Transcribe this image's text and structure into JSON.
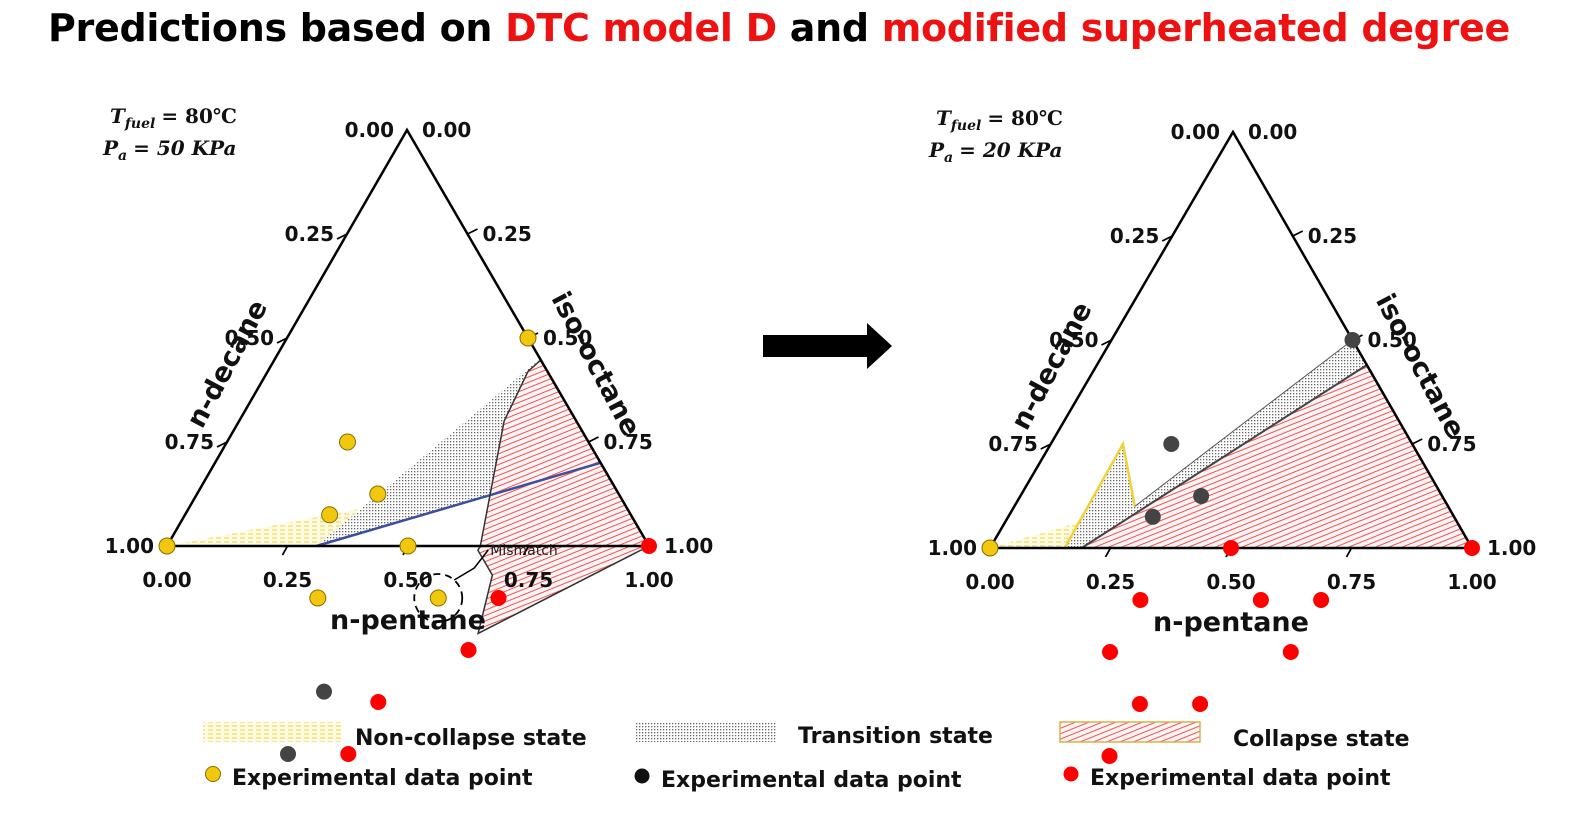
{
  "title": {
    "part1": "Predictions based on ",
    "part2": "DTC model D",
    "part3": " and ",
    "part4": "modified superheated degree",
    "highlight_color": "#ee1111"
  },
  "colors": {
    "non_collapse": "#f0d238",
    "transition": "#444444",
    "collapse": "#e11a1a",
    "boundary_left": "#3d4f9a",
    "yellow_point": "#f2c80f",
    "dark_point": "#444444",
    "red_point": "#ff0000",
    "arrow": "#000000"
  },
  "chart_data": [
    {
      "type": "scatter",
      "subtype": "ternary",
      "conditions": {
        "T_sym": "T",
        "T_sub": "fuel",
        "T_val": "= 80℃",
        "P_sym": "P",
        "P_sub": "a",
        "P_val": "= 50 KPa",
        "P_color": "#111111"
      },
      "axes": {
        "bottom": {
          "label": "n-pentane",
          "ticks": [
            "0.00",
            "0.25",
            "0.50",
            "0.75",
            "1.00"
          ]
        },
        "left": {
          "label": "n-decane",
          "ticks": [
            "1.00",
            "0.75",
            "0.50",
            "0.25",
            "0.00"
          ]
        },
        "right": {
          "label": "iso-octane",
          "ticks": [
            "1.00",
            "0.75",
            "0.50",
            "0.25",
            "0.00"
          ]
        }
      },
      "regions": {
        "non_collapse": [
          [
            0,
            1,
            0
          ],
          [
            0.31,
            0.69,
            0
          ],
          [
            0.8,
            0,
            0.2
          ]
        ],
        "transition": [
          [
            0.31,
            0.69,
            0
          ],
          [
            0.55,
            0,
            0.45
          ],
          [
            0.553,
            0,
            0.447
          ],
          [
            0.54,
            0.04,
            0.42
          ],
          [
            0.55,
            0.15,
            0.3
          ],
          [
            0.65,
            0.35,
            0
          ],
          [
            0.65,
            0.36,
            -0.01
          ],
          [
            0.71,
            0.36,
            -0.07
          ],
          [
            0.75,
            0.46,
            -0.21
          ],
          [
            0.8,
            0,
            0.2
          ]
        ],
        "collapse": [
          [
            0.553,
            0,
            0.447
          ],
          [
            1,
            0,
            0
          ],
          [
            0.75,
            0.46,
            -0.21
          ],
          [
            0.71,
            0.36,
            -0.07
          ],
          [
            0.65,
            0.36,
            -0.01
          ],
          [
            0.65,
            0.35,
            0
          ],
          [
            0.55,
            0.15,
            0.3
          ],
          [
            0.54,
            0.04,
            0.42
          ]
        ]
      },
      "boundary_left": [
        [
          0.31,
          0.69,
          0
        ],
        [
          0.8,
          0,
          0.2
        ]
      ],
      "points": [
        {
          "n_pentane": 0.0,
          "n_decane": 1.0,
          "state": "non_collapse"
        },
        {
          "n_pentane": 0.25,
          "n_decane": 0.5,
          "state": "non_collapse"
        },
        {
          "n_pentane": 0.375,
          "n_decane": 0.5,
          "state": "non_collapse"
        },
        {
          "n_pentane": 0.5,
          "n_decane": 0.5,
          "state": "non_collapse"
        },
        {
          "n_pentane": 0.625,
          "n_decane": 0.5,
          "state": "non_collapse"
        },
        {
          "n_pentane": 0.3,
          "n_decane": 0.625,
          "state": "non_collapse"
        },
        {
          "n_pentane": 0.375,
          "n_decane": 0.75,
          "state": "non_collapse"
        },
        {
          "n_pentane": 0.5,
          "n_decane": 0.0,
          "state": "non_collapse"
        },
        {
          "n_pentane": 0.5,
          "n_decane": 1.0,
          "state": "transition"
        },
        {
          "n_pentane": 0.5,
          "n_decane": 0.85,
          "state": "transition"
        },
        {
          "n_pentane": 0.75,
          "n_decane": 0.5,
          "state": "collapse"
        },
        {
          "n_pentane": 0.75,
          "n_decane": 0.375,
          "state": "collapse"
        },
        {
          "n_pentane": 0.625,
          "n_decane": 0.75,
          "state": "collapse"
        },
        {
          "n_pentane": 0.625,
          "n_decane": 0.875,
          "state": "collapse"
        },
        {
          "n_pentane": 1.0,
          "n_decane": 0.0,
          "state": "collapse"
        }
      ],
      "annotation": {
        "text": "Mismatch",
        "n_pentane": 0.625,
        "n_decane": 0.5
      }
    },
    {
      "type": "scatter",
      "subtype": "ternary",
      "conditions": {
        "T_sym": "T",
        "T_sub": "fuel",
        "T_val": "= 80℃",
        "P_sym": "P",
        "P_sub": "a",
        "P_val": "= 20 KPa",
        "P_color": "#ee1111"
      },
      "axes": {
        "bottom": {
          "label": "n-pentane",
          "ticks": [
            "0.00",
            "0.25",
            "0.50",
            "0.75",
            "1.00"
          ]
        },
        "left": {
          "label": "n-decane",
          "ticks": [
            "1.00",
            "0.75",
            "0.50",
            "0.25",
            "0.00"
          ]
        },
        "right": {
          "label": "iso-octane",
          "ticks": [
            "1.00",
            "0.75",
            "0.50",
            "0.25",
            "0.00"
          ]
        }
      },
      "regions": {
        "non_collapse": [
          [
            0,
            1,
            0
          ],
          [
            0.155,
            0.845,
            0
          ],
          [
            0.15,
            0.6,
            0.25
          ],
          [
            0.25,
            0.65,
            0.1
          ]
        ],
        "transition": [
          [
            0.155,
            0.845,
            0
          ],
          [
            0.19,
            0.81,
            0
          ],
          [
            0.56,
            0,
            0.44
          ],
          [
            0.5,
            0,
            0.5
          ],
          [
            0.25,
            0.65,
            0.1
          ],
          [
            0.15,
            0.6,
            0.25
          ]
        ],
        "collapse": [
          [
            0.19,
            0.81,
            0
          ],
          [
            1,
            0,
            0
          ],
          [
            0.56,
            0,
            0.44
          ]
        ]
      },
      "boundary_nc": [
        [
          0.155,
          0.845,
          0
        ],
        [
          0.15,
          0.6,
          0.25
        ],
        [
          0.25,
          0.65,
          0.1
        ]
      ],
      "boundary_right": [
        [
          0.19,
          0.81,
          0
        ],
        [
          0.56,
          0,
          0.44
        ]
      ],
      "points": [
        {
          "n_pentane": 0.0,
          "n_decane": 1.0,
          "state": "non_collapse"
        },
        {
          "n_pentane": 0.5,
          "n_decane": 0.0,
          "state": "transition"
        },
        {
          "n_pentane": 0.25,
          "n_decane": 0.5,
          "state": "transition"
        },
        {
          "n_pentane": 0.375,
          "n_decane": 0.5,
          "state": "transition"
        },
        {
          "n_pentane": 0.3,
          "n_decane": 0.625,
          "state": "transition"
        },
        {
          "n_pentane": 0.5,
          "n_decane": 0.5,
          "state": "collapse"
        },
        {
          "n_pentane": 0.625,
          "n_decane": 0.5,
          "state": "collapse"
        },
        {
          "n_pentane": 0.75,
          "n_decane": 0.5,
          "state": "collapse"
        },
        {
          "n_pentane": 0.75,
          "n_decane": 0.375,
          "state": "collapse"
        },
        {
          "n_pentane": 0.375,
          "n_decane": 0.75,
          "state": "collapse"
        },
        {
          "n_pentane": 0.625,
          "n_decane": 0.75,
          "state": "collapse"
        },
        {
          "n_pentane": 0.375,
          "n_decane": 0.875,
          "state": "collapse"
        },
        {
          "n_pentane": 0.5,
          "n_decane": 0.875,
          "state": "collapse"
        },
        {
          "n_pentane": 0.5,
          "n_decane": 1.0,
          "state": "collapse"
        },
        {
          "n_pentane": 1.0,
          "n_decane": 0.0,
          "state": "collapse"
        }
      ]
    }
  ],
  "legend": {
    "items": [
      {
        "label": "Non-collapse state",
        "state": "non_collapse"
      },
      {
        "label": "Transition state",
        "state": "transition"
      },
      {
        "label": "Collapse state",
        "state": "collapse"
      }
    ],
    "point_label": "Experimental data point"
  }
}
